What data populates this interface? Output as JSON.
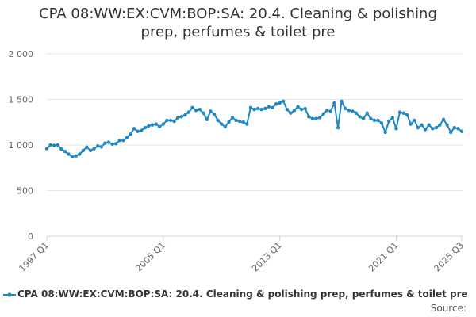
{
  "title_line1": "CPA 08:WW:EX:CVM:BOP:SA: 20.4. Cleaning & polishing",
  "title_line2": "prep, perfumes & toilet pre",
  "source_label": "Source:",
  "colors": {
    "series": "#1f87c2",
    "grid": "#e6e6e6",
    "axis": "#ccd6eb"
  },
  "chart_data": {
    "type": "line",
    "ylim": [
      0,
      2000
    ],
    "y_ticks": [
      0,
      500,
      1000,
      1500,
      2000
    ],
    "y_tick_labels": [
      "0",
      "500",
      "1 000",
      "1 500",
      "2 000"
    ],
    "x_tick_labels": [
      "1997 Q1",
      "2005 Q1",
      "2013 Q1",
      "2021 Q1",
      "2025 Q3"
    ],
    "x_tick_indices": [
      0,
      32,
      64,
      96,
      114
    ],
    "legend": "top-left below plot",
    "grid": true,
    "categories": [
      "1997 Q1",
      "1997 Q2",
      "1997 Q3",
      "1997 Q4",
      "1998 Q1",
      "1998 Q2",
      "1998 Q3",
      "1998 Q4",
      "1999 Q1",
      "1999 Q2",
      "1999 Q3",
      "1999 Q4",
      "2000 Q1",
      "2000 Q2",
      "2000 Q3",
      "2000 Q4",
      "2001 Q1",
      "2001 Q2",
      "2001 Q3",
      "2001 Q4",
      "2002 Q1",
      "2002 Q2",
      "2002 Q3",
      "2002 Q4",
      "2003 Q1",
      "2003 Q2",
      "2003 Q3",
      "2003 Q4",
      "2004 Q1",
      "2004 Q2",
      "2004 Q3",
      "2004 Q4",
      "2005 Q1",
      "2005 Q2",
      "2005 Q3",
      "2005 Q4",
      "2006 Q1",
      "2006 Q2",
      "2006 Q3",
      "2006 Q4",
      "2007 Q1",
      "2007 Q2",
      "2007 Q3",
      "2007 Q4",
      "2008 Q1",
      "2008 Q2",
      "2008 Q3",
      "2008 Q4",
      "2009 Q1",
      "2009 Q2",
      "2009 Q3",
      "2009 Q4",
      "2010 Q1",
      "2010 Q2",
      "2010 Q3",
      "2010 Q4",
      "2011 Q1",
      "2011 Q2",
      "2011 Q3",
      "2011 Q4",
      "2012 Q1",
      "2012 Q2",
      "2012 Q3",
      "2012 Q4",
      "2013 Q1",
      "2013 Q2",
      "2013 Q3",
      "2013 Q4",
      "2014 Q1",
      "2014 Q2",
      "2014 Q3",
      "2014 Q4",
      "2015 Q1",
      "2015 Q2",
      "2015 Q3",
      "2015 Q4",
      "2016 Q1",
      "2016 Q2",
      "2016 Q3",
      "2016 Q4",
      "2017 Q1",
      "2017 Q2",
      "2017 Q3",
      "2017 Q4",
      "2018 Q1",
      "2018 Q2",
      "2018 Q3",
      "2018 Q4",
      "2019 Q1",
      "2019 Q2",
      "2019 Q3",
      "2019 Q4",
      "2020 Q1",
      "2020 Q2",
      "2020 Q3",
      "2020 Q4",
      "2021 Q1",
      "2021 Q2",
      "2021 Q3",
      "2021 Q4",
      "2022 Q1",
      "2022 Q2",
      "2022 Q3",
      "2022 Q4",
      "2023 Q1",
      "2023 Q2",
      "2023 Q3",
      "2023 Q4",
      "2024 Q1",
      "2024 Q2",
      "2024 Q3",
      "2024 Q4",
      "2025 Q1",
      "2025 Q2",
      "2025 Q3"
    ],
    "series": [
      {
        "name": "CPA 08:WW:EX:CVM:BOP:SA: 20.4. Cleaning & polishing prep, perfumes & toilet pre",
        "values": [
          960,
          1000,
          995,
          1000,
          955,
          930,
          900,
          870,
          880,
          900,
          940,
          975,
          940,
          960,
          990,
          980,
          1020,
          1030,
          1010,
          1015,
          1050,
          1050,
          1080,
          1120,
          1180,
          1150,
          1160,
          1190,
          1210,
          1220,
          1230,
          1200,
          1230,
          1270,
          1270,
          1260,
          1300,
          1310,
          1330,
          1360,
          1410,
          1380,
          1390,
          1350,
          1280,
          1370,
          1340,
          1270,
          1230,
          1200,
          1250,
          1300,
          1270,
          1260,
          1250,
          1230,
          1410,
          1390,
          1400,
          1390,
          1400,
          1420,
          1410,
          1450,
          1460,
          1480,
          1390,
          1350,
          1380,
          1420,
          1390,
          1400,
          1310,
          1290,
          1290,
          1300,
          1340,
          1380,
          1370,
          1460,
          1190,
          1480,
          1400,
          1380,
          1370,
          1350,
          1310,
          1290,
          1350,
          1290,
          1270,
          1270,
          1240,
          1140,
          1260,
          1300,
          1180,
          1360,
          1350,
          1330,
          1230,
          1270,
          1190,
          1220,
          1170,
          1220,
          1180,
          1190,
          1220,
          1280,
          1220,
          1140,
          1190,
          1180,
          1150
        ]
      }
    ]
  }
}
